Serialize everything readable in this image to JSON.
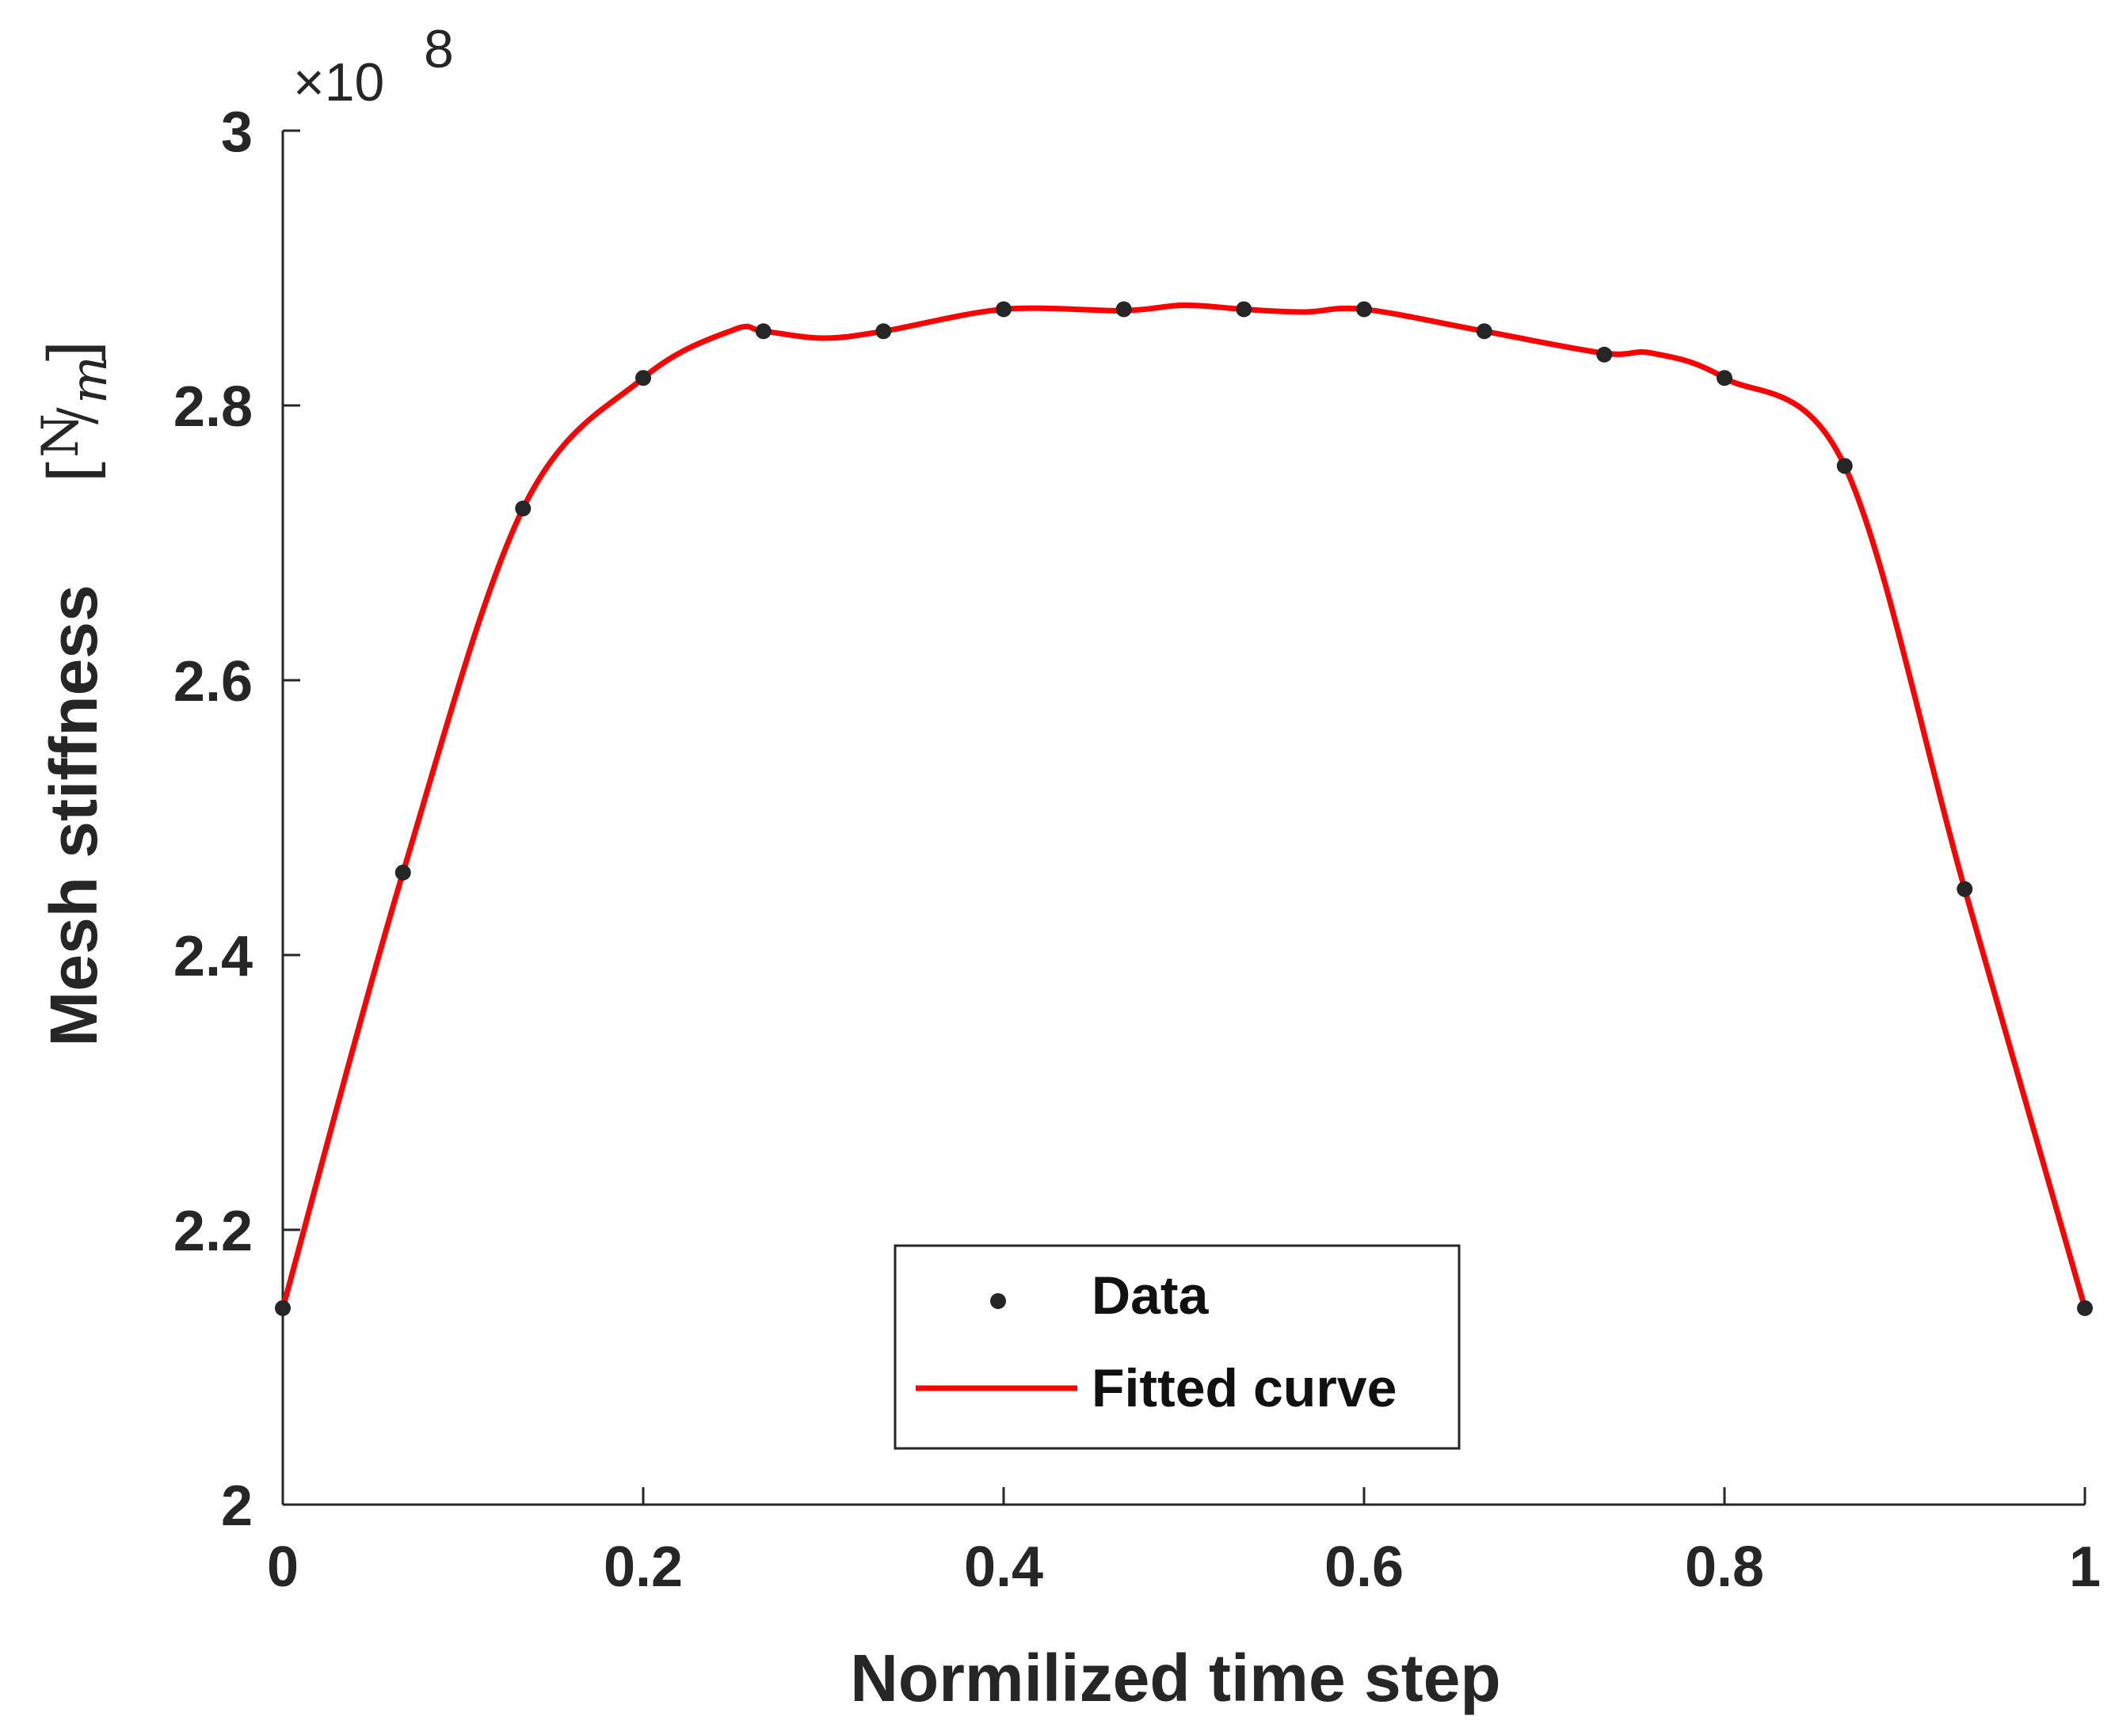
{
  "chart_data": {
    "type": "line",
    "title": "",
    "xlabel": "Normilized time step",
    "ylabel": "Mesh stiffness",
    "ylabel_unit_numerator": "N",
    "ylabel_unit_denominator": "m",
    "y_exponent_label": "×10",
    "y_exponent_power": "8",
    "xlim": [
      0,
      1
    ],
    "ylim": [
      2,
      3
    ],
    "xticks": [
      0,
      0.2,
      0.4,
      0.6,
      0.8,
      1
    ],
    "xtick_labels": [
      "0",
      "0.2",
      "0.4",
      "0.6",
      "0.8",
      "1"
    ],
    "yticks": [
      2,
      2.2,
      2.4,
      2.6,
      2.8,
      3
    ],
    "ytick_labels": [
      "2",
      "2.2",
      "2.4",
      "2.6",
      "2.8",
      "3"
    ],
    "grid": false,
    "legend_position": "bottom-center",
    "series": [
      {
        "name": "Data",
        "style": "markers",
        "color": "#262626",
        "x": [
          0,
          0.0667,
          0.1333,
          0.2,
          0.2667,
          0.3333,
          0.4,
          0.4667,
          0.5333,
          0.6,
          0.6667,
          0.7333,
          0.8,
          0.8667,
          0.9333,
          1
        ],
        "y": [
          2.143,
          2.46,
          2.725,
          2.82,
          2.854,
          2.854,
          2.87,
          2.87,
          2.87,
          2.87,
          2.854,
          2.837,
          2.82,
          2.756,
          2.448,
          2.143
        ]
      },
      {
        "name": "Fitted curve",
        "style": "line",
        "color": "#ff0000",
        "x": [
          0,
          0.0667,
          0.1333,
          0.2,
          0.25,
          0.2667,
          0.3,
          0.3333,
          0.4,
          0.4667,
          0.5,
          0.5333,
          0.5667,
          0.6,
          0.6667,
          0.7333,
          0.76,
          0.8,
          0.8667,
          0.9333,
          1
        ],
        "y": [
          2.143,
          2.46,
          2.725,
          2.82,
          2.855,
          2.854,
          2.849,
          2.854,
          2.87,
          2.869,
          2.873,
          2.87,
          2.868,
          2.87,
          2.854,
          2.838,
          2.838,
          2.82,
          2.756,
          2.448,
          2.143
        ]
      }
    ]
  }
}
